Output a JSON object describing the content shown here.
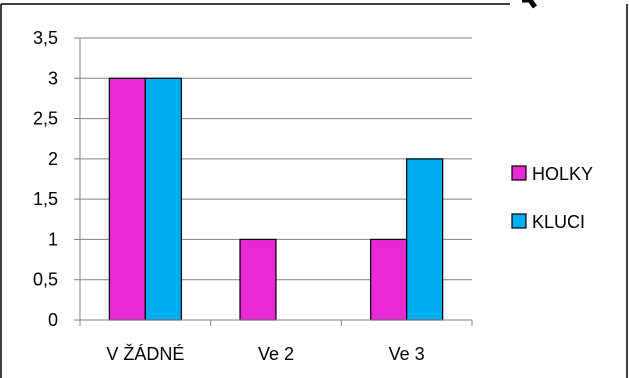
{
  "chart_data": {
    "type": "bar",
    "categories": [
      "V ŽÁDNÉ",
      "Ve 2",
      "Ve 3"
    ],
    "series": [
      {
        "name": "HOLKY",
        "values": [
          3,
          1,
          1
        ],
        "color": "#E829D4"
      },
      {
        "name": "KLUCI",
        "values": [
          3,
          0,
          2
        ],
        "color": "#00AEEF"
      }
    ],
    "ylim": [
      0,
      3.5
    ],
    "yticks": [
      "0",
      "0,5",
      "1",
      "1,5",
      "2",
      "2,5",
      "3",
      "3,5"
    ],
    "ytick_values": [
      0,
      0.5,
      1,
      1.5,
      2,
      2.5,
      3,
      3.5
    ],
    "grid": true,
    "legend_position": "right",
    "title": "",
    "xlabel": "",
    "ylabel": ""
  },
  "colors": {
    "bar_outline": "#000000",
    "gridline": "#808080",
    "axis": "#808080",
    "frame": "#000000"
  }
}
